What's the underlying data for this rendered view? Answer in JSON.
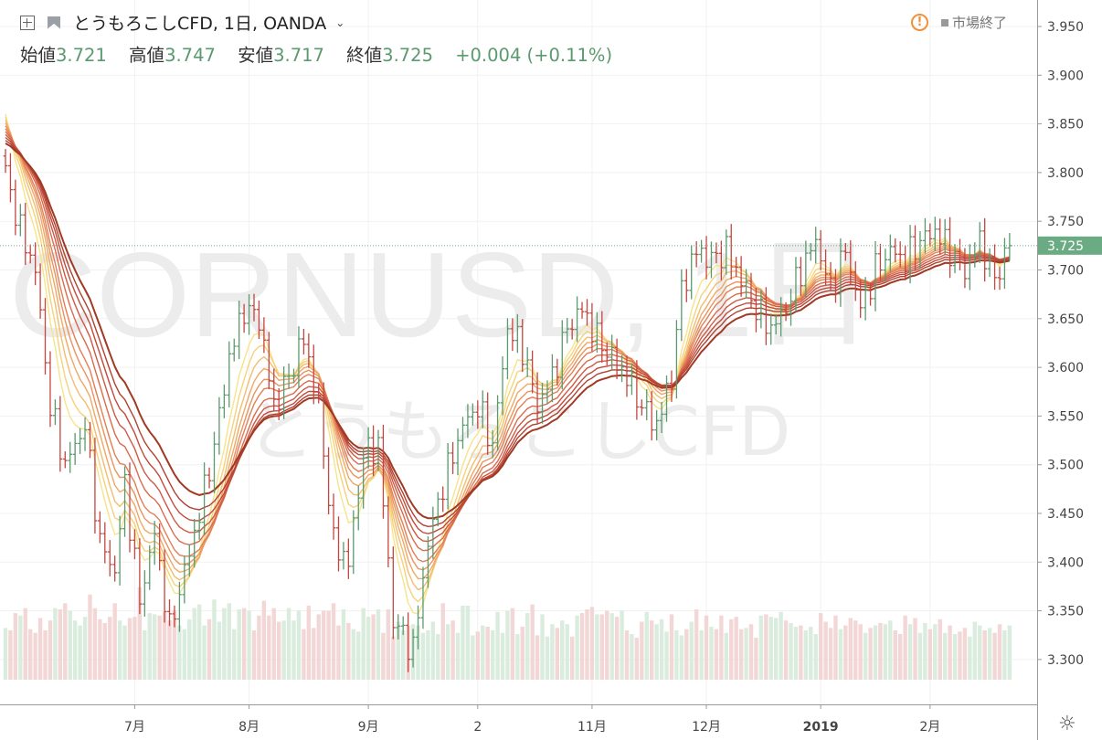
{
  "header": {
    "title": "とうもろこしCFD, 1日, OANDA",
    "ohlc": [
      {
        "label": "始値",
        "value": "3.721"
      },
      {
        "label": "高値",
        "value": "3.747"
      },
      {
        "label": "安値",
        "value": "3.717"
      },
      {
        "label": "終値",
        "value": "3.725"
      }
    ],
    "change": "+0.004 (+0.11%)",
    "status": "市場終了"
  },
  "watermark": {
    "symbol": "CORNUSD, 1日",
    "name": "とうもろこしCFD"
  },
  "colors": {
    "up": "#5a9a6e",
    "down": "#c5453f",
    "ribbon_fast": "#f7e38a",
    "ribbon_slow": "#a03a24",
    "price_tag": "#6bab84"
  },
  "chart_data": {
    "type": "candlestick",
    "ylim": [
      3.25,
      3.97
    ],
    "yticks": [
      "3.950",
      "3.900",
      "3.850",
      "3.800",
      "3.750",
      "3.700",
      "3.650",
      "3.600",
      "3.550",
      "3.500",
      "3.450",
      "3.400",
      "3.350",
      "3.300"
    ],
    "xticks": [
      {
        "label": "7月",
        "i": 26
      },
      {
        "label": "8月",
        "i": 49
      },
      {
        "label": "9月",
        "i": 73
      },
      {
        "label": "2",
        "i": 95
      },
      {
        "label": "11月",
        "i": 118
      },
      {
        "label": "12月",
        "i": 141
      },
      {
        "label": "2019",
        "i": 164,
        "bold": true
      },
      {
        "label": "2月",
        "i": 186
      }
    ],
    "last_price": "3.725",
    "last_value": 3.725,
    "n_bars": 203,
    "anchors": [
      [
        0,
        3.8
      ],
      [
        3,
        3.74
      ],
      [
        6,
        3.7
      ],
      [
        9,
        3.56
      ],
      [
        12,
        3.5
      ],
      [
        16,
        3.54
      ],
      [
        19,
        3.42
      ],
      [
        22,
        3.39
      ],
      [
        24,
        3.48
      ],
      [
        27,
        3.36
      ],
      [
        30,
        3.43
      ],
      [
        33,
        3.33
      ],
      [
        36,
        3.39
      ],
      [
        39,
        3.45
      ],
      [
        42,
        3.52
      ],
      [
        45,
        3.61
      ],
      [
        48,
        3.66
      ],
      [
        51,
        3.65
      ],
      [
        54,
        3.56
      ],
      [
        57,
        3.59
      ],
      [
        60,
        3.63
      ],
      [
        63,
        3.56
      ],
      [
        66,
        3.42
      ],
      [
        69,
        3.4
      ],
      [
        72,
        3.51
      ],
      [
        75,
        3.52
      ],
      [
        78,
        3.34
      ],
      [
        82,
        3.31
      ],
      [
        85,
        3.42
      ],
      [
        88,
        3.48
      ],
      [
        92,
        3.54
      ],
      [
        95,
        3.56
      ],
      [
        98,
        3.52
      ],
      [
        101,
        3.64
      ],
      [
        104,
        3.62
      ],
      [
        107,
        3.56
      ],
      [
        110,
        3.59
      ],
      [
        113,
        3.64
      ],
      [
        116,
        3.66
      ],
      [
        119,
        3.63
      ],
      [
        122,
        3.61
      ],
      [
        125,
        3.59
      ],
      [
        128,
        3.56
      ],
      [
        131,
        3.54
      ],
      [
        134,
        3.59
      ],
      [
        136,
        3.68
      ],
      [
        139,
        3.72
      ],
      [
        142,
        3.71
      ],
      [
        145,
        3.72
      ],
      [
        148,
        3.69
      ],
      [
        151,
        3.66
      ],
      [
        154,
        3.64
      ],
      [
        157,
        3.66
      ],
      [
        160,
        3.7
      ],
      [
        163,
        3.73
      ],
      [
        166,
        3.68
      ],
      [
        169,
        3.72
      ],
      [
        172,
        3.66
      ],
      [
        175,
        3.7
      ],
      [
        178,
        3.72
      ],
      [
        181,
        3.71
      ],
      [
        184,
        3.73
      ],
      [
        187,
        3.74
      ],
      [
        190,
        3.72
      ],
      [
        193,
        3.7
      ],
      [
        196,
        3.73
      ],
      [
        199,
        3.69
      ],
      [
        202,
        3.725
      ]
    ],
    "volumes": [
      42,
      40,
      54,
      52,
      58,
      41,
      38,
      50,
      40,
      48,
      58,
      57,
      62,
      56,
      48,
      44,
      51,
      69,
      58,
      49,
      46,
      51,
      62,
      48,
      44,
      50,
      51,
      75,
      40,
      54,
      53,
      52,
      55,
      48,
      56,
      44,
      41,
      49,
      58,
      61,
      44,
      49,
      65,
      47,
      58,
      62,
      41,
      57,
      58,
      56,
      40,
      52,
      64,
      52,
      58,
      47,
      48,
      58,
      48,
      56,
      41,
      60,
      42,
      53,
      56,
      56,
      62,
      44,
      57,
      46,
      41,
      39,
      58,
      51,
      53,
      57,
      38,
      57,
      35,
      47,
      40,
      44,
      45,
      44,
      38,
      40,
      47,
      37,
      62,
      45,
      48,
      38,
      60,
      60,
      36,
      39,
      44,
      43,
      40,
      55,
      38,
      56,
      58,
      37,
      43,
      54,
      61,
      36,
      53,
      35,
      45,
      42,
      48,
      45,
      35,
      52,
      54,
      57,
      59,
      53,
      53,
      56,
      54,
      51,
      56,
      40,
      37,
      34,
      47,
      55,
      48,
      45,
      49,
      39,
      53,
      40,
      36,
      41,
      47,
      57,
      40,
      52,
      43,
      41,
      52,
      38,
      49,
      51,
      41,
      42,
      45,
      34,
      52,
      53,
      51,
      50,
      55,
      48,
      46,
      43,
      44,
      40,
      43,
      37,
      54,
      47,
      42,
      52,
      41,
      44,
      50,
      48,
      45,
      38,
      42,
      44,
      46,
      45,
      48,
      40,
      37,
      52,
      45,
      50,
      38,
      46,
      41,
      45,
      49,
      38,
      44,
      37,
      39,
      42,
      35,
      47,
      44,
      40,
      42,
      38,
      45,
      40,
      44
    ]
  }
}
